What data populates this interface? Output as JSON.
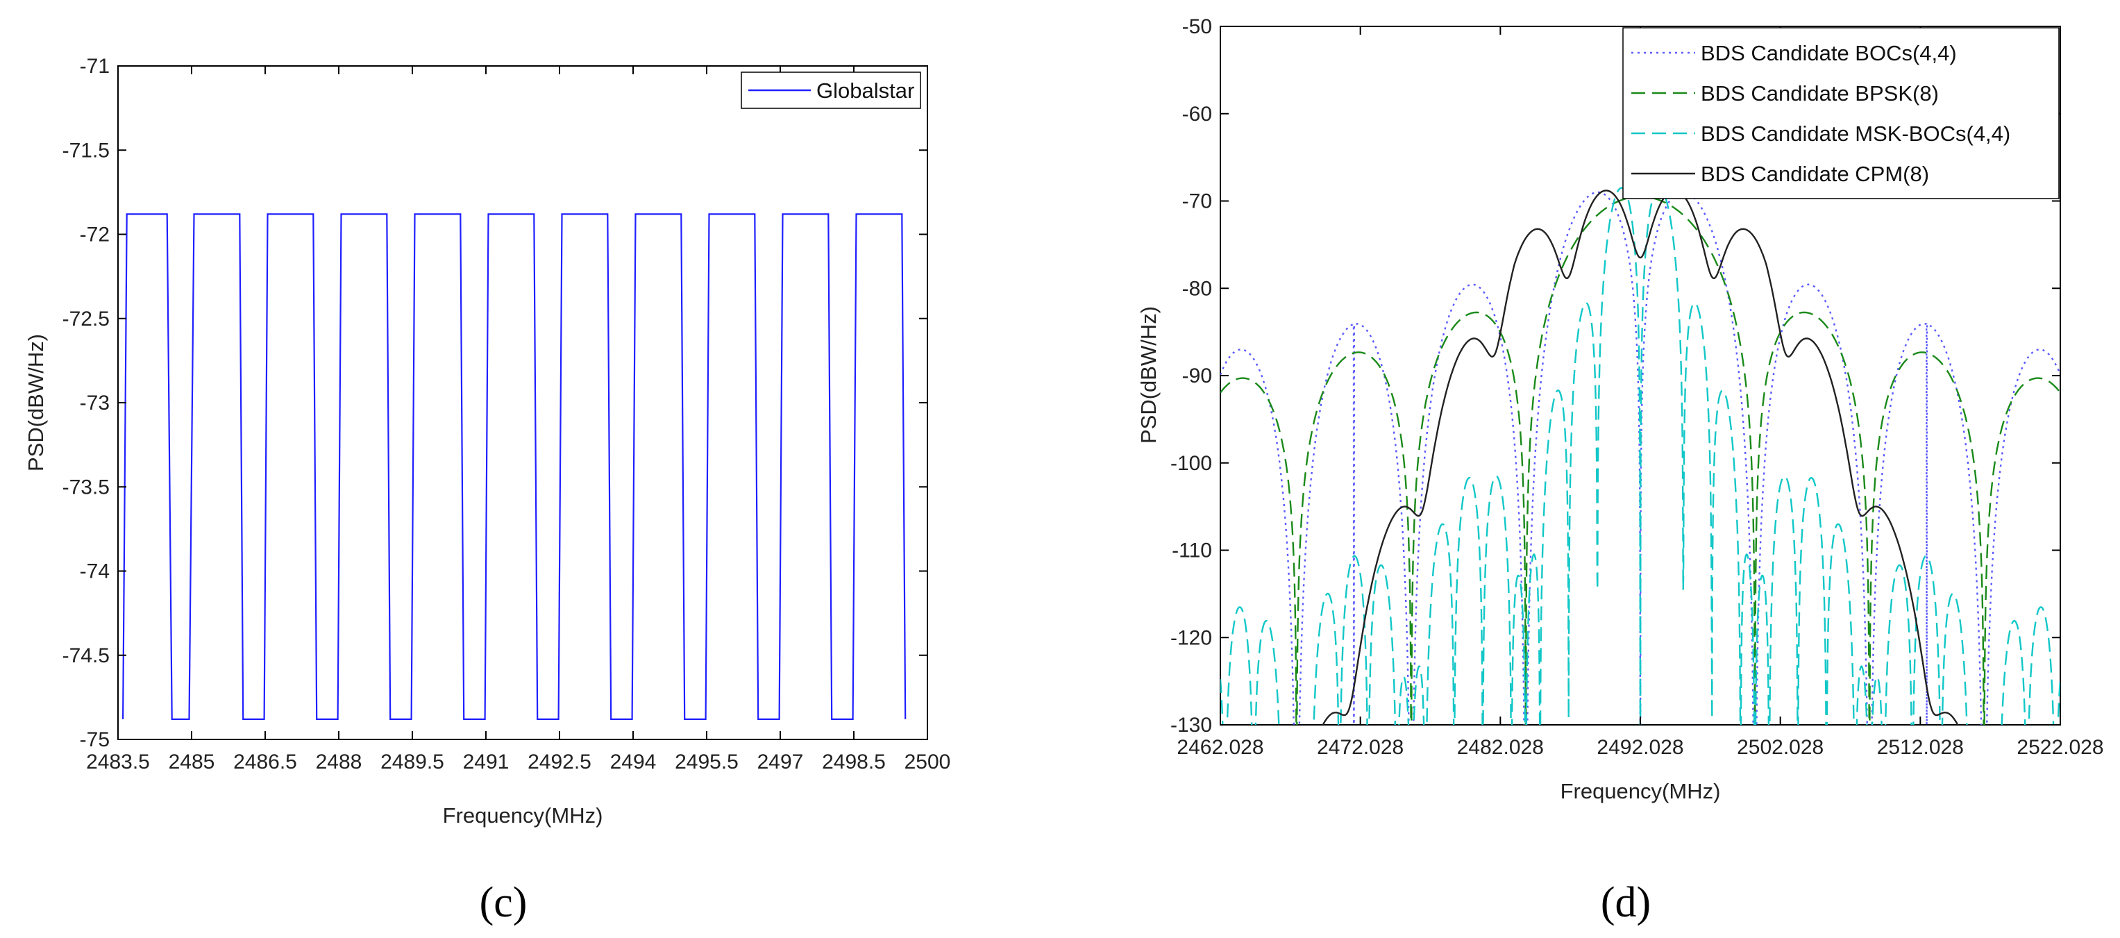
{
  "colors": {
    "globalstar": "#1f1fff",
    "boc": "#5a5aff",
    "bpsk": "#1a8a1a",
    "msk": "#12c7c7",
    "cpm": "#222222"
  },
  "chart_data": [
    {
      "panel": "(c)",
      "type": "line",
      "xlabel": "Frequency(MHz)",
      "ylabel": "PSD(dBW/Hz)",
      "xlim": [
        2483.5,
        2500
      ],
      "ylim": [
        -75,
        -71
      ],
      "xticks": [
        "2483.5",
        "2485",
        "2486.5",
        "2488",
        "2489.5",
        "2491",
        "2492.5",
        "2494",
        "2495.5",
        "2497",
        "2498.5",
        "2500"
      ],
      "yticks": [
        "-71",
        "-71.5",
        "-72",
        "-72.5",
        "-73",
        "-73.5",
        "-74",
        "-74.5",
        "-75"
      ],
      "legend_position": "top-right",
      "series": [
        {
          "name": "Globalstar",
          "style": "solid",
          "color": "#1f1fff",
          "plateau_level": -71.88,
          "floor_level": -74.88,
          "channel_edges": [
            2484.55,
            2485.05,
            2486.05,
            2486.55,
            2487.55,
            2488.05,
            2489.05,
            2489.55,
            2490.55,
            2491.05,
            2492.05,
            2492.55,
            2493.55,
            2494.05,
            2495.05,
            2495.55,
            2496.55,
            2497.05,
            2498.05,
            2498.55,
            2499.55
          ],
          "points": [
            [
              2483.6,
              -74.88
            ],
            [
              2483.68,
              -71.88
            ],
            [
              2484.5,
              -71.88
            ],
            [
              2484.6,
              -74.88
            ],
            [
              2484.95,
              -74.88
            ],
            [
              2485.05,
              -71.88
            ],
            [
              2485.98,
              -71.88
            ],
            [
              2486.05,
              -74.88
            ],
            [
              2486.48,
              -74.88
            ],
            [
              2486.55,
              -71.88
            ],
            [
              2487.48,
              -71.88
            ],
            [
              2487.55,
              -74.88
            ],
            [
              2487.98,
              -74.88
            ],
            [
              2488.05,
              -71.88
            ],
            [
              2488.98,
              -71.88
            ],
            [
              2489.05,
              -74.88
            ],
            [
              2489.48,
              -74.88
            ],
            [
              2489.55,
              -71.88
            ],
            [
              2490.48,
              -71.88
            ],
            [
              2490.55,
              -74.88
            ],
            [
              2490.98,
              -74.88
            ],
            [
              2491.05,
              -71.88
            ],
            [
              2491.98,
              -71.88
            ],
            [
              2492.05,
              -74.88
            ],
            [
              2492.48,
              -74.88
            ],
            [
              2492.55,
              -71.88
            ],
            [
              2493.48,
              -71.88
            ],
            [
              2493.55,
              -74.88
            ],
            [
              2493.98,
              -74.88
            ],
            [
              2494.05,
              -71.88
            ],
            [
              2494.98,
              -71.88
            ],
            [
              2495.05,
              -74.88
            ],
            [
              2495.48,
              -74.88
            ],
            [
              2495.55,
              -71.88
            ],
            [
              2496.48,
              -71.88
            ],
            [
              2496.55,
              -74.88
            ],
            [
              2496.98,
              -74.88
            ],
            [
              2497.05,
              -71.88
            ],
            [
              2497.98,
              -71.88
            ],
            [
              2498.05,
              -74.88
            ],
            [
              2498.48,
              -74.88
            ],
            [
              2498.55,
              -71.88
            ],
            [
              2499.48,
              -71.88
            ],
            [
              2499.55,
              -74.88
            ]
          ]
        }
      ]
    },
    {
      "panel": "(d)",
      "type": "line",
      "xlabel": "Frequency(MHz)",
      "ylabel": "PSD(dBW/Hz)",
      "xlim": [
        2462.028,
        2522.028
      ],
      "ylim": [
        -130,
        -50
      ],
      "xticks": [
        "2462.028",
        "2472.028",
        "2482.028",
        "2492.028",
        "2502.028",
        "2512.028",
        "2522.028"
      ],
      "yticks": [
        "-50",
        "-60",
        "-70",
        "-80",
        "-90",
        "-100",
        "-110",
        "-120",
        "-130"
      ],
      "legend_position": "top-right",
      "series": [
        {
          "name": "BDS Candidate BOCs(4,4)",
          "style": "dotted",
          "color": "#5a5aff",
          "model": "boc",
          "center": 2492.028,
          "fc": 4.092,
          "peak_db": -69.0
        },
        {
          "name": "BDS Candidate BPSK(8)",
          "style": "dashed",
          "color": "#1a8a1a",
          "model": "bpsk",
          "center": 2492.028,
          "fc": 8.184,
          "peak_db": -69.5
        },
        {
          "name": "BDS Candidate MSK-BOCs(4,4)",
          "style": "dashed",
          "color": "#12c7c7",
          "model": "mskboc",
          "center": 2492.028,
          "fc": 4.092,
          "peak_db": -68.5
        },
        {
          "name": "BDS Candidate CPM(8)",
          "style": "solid",
          "color": "#222222",
          "model": "cpm",
          "center": 2492.028,
          "peak_db": -68.8
        }
      ]
    }
  ],
  "panels": {
    "c_label": "(c)",
    "d_label": "(d)"
  }
}
